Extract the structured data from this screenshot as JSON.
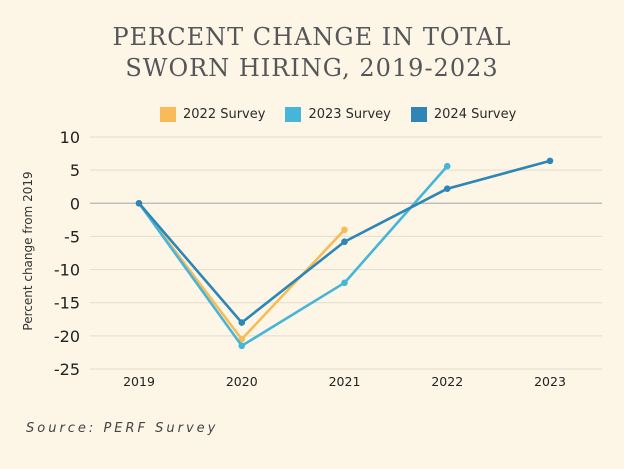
{
  "chart_data": {
    "type": "line",
    "title_lines": [
      "PERCENT CHANGE IN TOTAL",
      "SWORN HIRING, 2019-2023"
    ],
    "xlabel": "",
    "ylabel": "Percent change from 2019",
    "categories": [
      "2019",
      "2020",
      "2021",
      "2022",
      "2023"
    ],
    "ylim": [
      -25,
      10
    ],
    "yticks": [
      10,
      5,
      0,
      -5,
      -10,
      -15,
      -20,
      -25
    ],
    "ytick_labels": [
      "10",
      "5",
      "0",
      "-5",
      "-10",
      "-15",
      "-20",
      "-25"
    ],
    "grid": true,
    "legend_position": "top",
    "series": [
      {
        "name": "2022 Survey",
        "color": "#f9bb5a",
        "values": [
          0,
          -20.5,
          -4,
          null,
          null
        ]
      },
      {
        "name": "2023 Survey",
        "color": "#45b6d9",
        "values": [
          0,
          -21.5,
          -12,
          5.6,
          null
        ]
      },
      {
        "name": "2024 Survey",
        "color": "#2d86b6",
        "values": [
          0,
          -18,
          -5.8,
          2.2,
          6.4
        ]
      }
    ]
  },
  "source": "Source: PERF Survey"
}
